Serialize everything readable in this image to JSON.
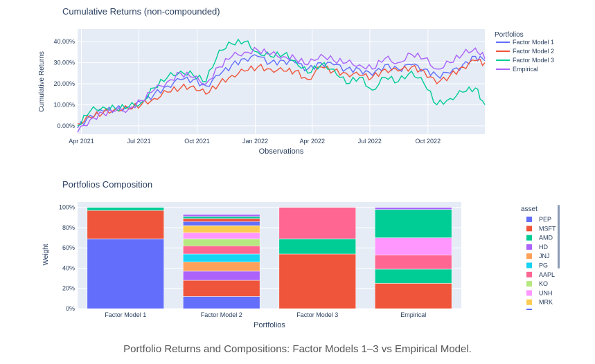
{
  "caption": "Portfolio Returns and Compositions: Factor Models 1–3 vs Empirical Model.",
  "chart_data": [
    {
      "type": "line",
      "title": "Cumulative Returns (non-compounded)",
      "xlabel": "Observations",
      "ylabel": "Cumulative Returns",
      "x_range": [
        "2021-03-26",
        "2022-12-30"
      ],
      "x_ticks": [
        "Apr 2021",
        "Jul 2021",
        "Oct 2021",
        "Jan 2022",
        "Apr 2022",
        "Jul 2022",
        "Oct 2022"
      ],
      "y_ticks": [
        "0.00%",
        "10.00%",
        "20.00%",
        "30.00%",
        "40.00%"
      ],
      "ylim": [
        -4,
        46
      ],
      "grid": true,
      "legend_title": "Portfolios",
      "legend_position": "right",
      "x": [
        "2021-03-26",
        "2021-04-15",
        "2021-05-05",
        "2021-05-25",
        "2021-06-15",
        "2021-07-05",
        "2021-07-25",
        "2021-08-15",
        "2021-09-05",
        "2021-09-25",
        "2021-10-15",
        "2021-11-05",
        "2021-11-25",
        "2021-12-15",
        "2022-01-05",
        "2022-01-25",
        "2022-02-15",
        "2022-03-05",
        "2022-03-25",
        "2022-04-15",
        "2022-05-05",
        "2022-05-25",
        "2022-06-15",
        "2022-07-05",
        "2022-07-25",
        "2022-08-15",
        "2022-09-05",
        "2022-09-25",
        "2022-10-15",
        "2022-11-05",
        "2022-11-25",
        "2022-12-15",
        "2022-12-30"
      ],
      "series": [
        {
          "name": "Factor Model 1",
          "color": "#636efa",
          "values": [
            -1,
            5,
            7,
            8,
            9,
            11,
            15,
            19,
            22,
            22,
            19,
            24,
            29,
            32,
            33,
            30,
            31,
            30,
            27,
            30,
            29,
            27,
            27,
            24,
            29,
            27,
            29,
            27,
            24,
            25,
            29,
            33,
            31
          ]
        },
        {
          "name": "Factor Model 2",
          "color": "#ef553b",
          "values": [
            1,
            4,
            6,
            8,
            8,
            10,
            13,
            16,
            18,
            19,
            15,
            20,
            24,
            26,
            28,
            27,
            26,
            26,
            22,
            28,
            26,
            25,
            24,
            23,
            27,
            26,
            28,
            26,
            20,
            24,
            28,
            31,
            30
          ]
        },
        {
          "name": "Factor Model 3",
          "color": "#00cc96",
          "values": [
            0,
            7,
            9,
            8,
            9,
            11,
            18,
            23,
            26,
            24,
            21,
            36,
            39,
            40,
            35,
            33,
            34,
            31,
            25,
            29,
            27,
            20,
            23,
            17,
            23,
            21,
            26,
            20,
            10,
            13,
            16,
            18,
            10
          ]
        },
        {
          "name": "Empirical",
          "color": "#ab63fa",
          "values": [
            -3,
            3,
            6,
            7,
            8,
            12,
            17,
            21,
            25,
            23,
            20,
            28,
            33,
            35,
            36,
            34,
            33,
            32,
            29,
            34,
            31,
            30,
            29,
            27,
            32,
            30,
            34,
            32,
            27,
            30,
            34,
            37,
            32
          ]
        }
      ]
    },
    {
      "type": "bar",
      "stacked": true,
      "title": "Portfolios Composition",
      "xlabel": "Portfolios",
      "ylabel": "Weight",
      "categories": [
        "Factor Model 1",
        "Factor Model 2",
        "Factor Model 3",
        "Empirical"
      ],
      "y_ticks": [
        "0%",
        "20%",
        "40%",
        "60%",
        "80%",
        "100%"
      ],
      "ylim": [
        0,
        100
      ],
      "legend_title": "asset",
      "legend_position": "right",
      "series": [
        {
          "name": "PEP",
          "color": "#636efa",
          "values": [
            69,
            12,
            0,
            0
          ]
        },
        {
          "name": "MSFT",
          "color": "#ef553b",
          "values": [
            28,
            16,
            54,
            25
          ]
        },
        {
          "name": "AMD",
          "color": "#00cc96",
          "values": [
            3,
            0,
            15,
            14
          ]
        },
        {
          "name": "HD",
          "color": "#ab63fa",
          "values": [
            0,
            9,
            0,
            0
          ]
        },
        {
          "name": "JNJ",
          "color": "#ffa15a",
          "values": [
            0,
            9,
            0,
            0
          ]
        },
        {
          "name": "PG",
          "color": "#19d3f3",
          "values": [
            0,
            8,
            0,
            0
          ]
        },
        {
          "name": "AAPL",
          "color": "#ff6692",
          "values": [
            0,
            8,
            31,
            14
          ]
        },
        {
          "name": "KO",
          "color": "#b6e880",
          "values": [
            0,
            7,
            0,
            0
          ]
        },
        {
          "name": "UNH",
          "color": "#ff97ff",
          "values": [
            0,
            6,
            0,
            17
          ]
        },
        {
          "name": "MRK",
          "color": "#fecb52",
          "values": [
            0,
            7,
            0,
            0
          ]
        },
        {
          "name": "",
          "color": "#636efa",
          "values": [
            0,
            4,
            0,
            0
          ]
        },
        {
          "name": "",
          "color": "#ef553b",
          "values": [
            0,
            3,
            0,
            0
          ]
        },
        {
          "name": "",
          "color": "#00cc96",
          "values": [
            0,
            2,
            0,
            28
          ]
        },
        {
          "name": "",
          "color": "#ab63fa",
          "values": [
            0,
            2,
            0,
            2
          ]
        }
      ],
      "legend_visible": [
        "PEP",
        "MSFT",
        "AMD",
        "HD",
        "JNJ",
        "PG",
        "AAPL",
        "KO",
        "UNH",
        "MRK"
      ]
    }
  ]
}
